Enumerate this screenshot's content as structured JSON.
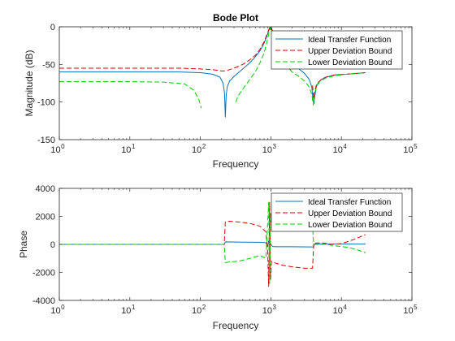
{
  "chart_data": [
    {
      "type": "line",
      "title": "Bode Plot",
      "xlabel": "Frequency",
      "ylabel": "Magnitude (dB)",
      "x_scale": "log",
      "xlim": [
        1,
        100000
      ],
      "ylim": [
        -150,
        0
      ],
      "x_ticks": [
        1,
        10,
        100,
        1000,
        10000,
        100000
      ],
      "y_ticks": [
        -150,
        -100,
        -50,
        0
      ],
      "y_tick_labels": [
        "-150",
        "-100",
        "-50",
        "0"
      ],
      "legend_position": "top-right",
      "series": [
        {
          "name": "Ideal Transfer Function",
          "color": "#0072bd",
          "dash": "solid",
          "x": [
            1,
            10,
            50,
            100,
            150,
            190,
            210,
            220,
            226,
            232,
            240,
            260,
            300,
            400,
            500,
            600,
            700,
            800,
            880,
            940,
            970,
            1000,
            1030,
            1070,
            1150,
            1300,
            1600,
            2000,
            2500,
            3000,
            3500,
            3800,
            4000,
            4100,
            4200,
            4400,
            4700,
            5200,
            6000,
            8000,
            12000,
            16000,
            22000
          ],
          "y": [
            -60,
            -60,
            -60,
            -61,
            -63,
            -67,
            -75,
            -88,
            -120,
            -92,
            -80,
            -72,
            -66,
            -56,
            -48,
            -40,
            -32,
            -22,
            -12,
            -4,
            -1,
            0,
            -2,
            -8,
            -18,
            -32,
            -42,
            -50,
            -56,
            -62,
            -70,
            -80,
            -100,
            -102,
            -92,
            -80,
            -74,
            -70,
            -67,
            -64,
            -63,
            -62,
            -61
          ]
        },
        {
          "name": "Upper Deviation Bound",
          "color": "#e00000",
          "dash": "dashed",
          "x": [
            1,
            10,
            50,
            100,
            150,
            180,
            210,
            240,
            300,
            400,
            500,
            600,
            700,
            800,
            880,
            940,
            980,
            1000,
            1020,
            1060,
            1100,
            1200,
            1400,
            1700,
            2000
          ],
          "y": [
            -55,
            -55,
            -55,
            -56,
            -57,
            -58,
            -59,
            -58,
            -55,
            -50,
            -44,
            -38,
            -30,
            -20,
            -10,
            -3,
            0,
            0,
            -3,
            -10,
            -18,
            -30,
            -42,
            -52,
            -60
          ]
        },
        {
          "name": "",
          "color": "#e00000",
          "dash": "dashed",
          "x": [
            3900,
            4050,
            4200,
            4400,
            4700,
            5200,
            6000,
            8000,
            12000,
            16000,
            22000
          ],
          "y": [
            -78,
            -95,
            -85,
            -78,
            -74,
            -70,
            -67,
            -64,
            -63,
            -62,
            -61
          ]
        },
        {
          "name": "Lower Deviation Bound",
          "color": "#00cc00",
          "dash": "dashed",
          "x": [
            1,
            10,
            30,
            60,
            80,
            95,
            103
          ],
          "y": [
            -73,
            -73,
            -73.5,
            -76,
            -84,
            -96,
            -108
          ]
        },
        {
          "name": "",
          "color": "#00cc00",
          "dash": "dashed",
          "x": [
            320,
            340,
            380,
            420,
            500,
            600,
            700,
            800,
            880,
            940,
            980,
            1000,
            1020,
            1060,
            1100,
            1200,
            1400,
            1700,
            2000,
            2500,
            3000,
            3500,
            3800,
            4000,
            4100,
            4250,
            4500,
            5000,
            6000,
            8000,
            12000,
            16000,
            22000
          ],
          "y": [
            -100,
            -92,
            -86,
            -80,
            -70,
            -60,
            -48,
            -35,
            -20,
            -8,
            -2,
            0,
            -4,
            -12,
            -20,
            -32,
            -44,
            -53,
            -60,
            -66,
            -72,
            -80,
            -90,
            -104,
            -96,
            -86,
            -78,
            -72,
            -68,
            -65,
            -63,
            -62,
            -61
          ]
        }
      ]
    },
    {
      "type": "line",
      "title": "",
      "xlabel": "Frequency",
      "ylabel": "Phase",
      "x_scale": "log",
      "xlim": [
        1,
        100000
      ],
      "ylim": [
        -4000,
        4000
      ],
      "x_ticks": [
        1,
        10,
        100,
        1000,
        10000,
        100000
      ],
      "y_ticks": [
        -4000,
        -2000,
        0,
        2000,
        4000
      ],
      "y_tick_labels": [
        "-4000",
        "-2000",
        "0",
        "2000",
        "4000"
      ],
      "legend_position": "top-right",
      "series": [
        {
          "name": "Ideal Transfer Function",
          "color": "#0072bd",
          "dash": "solid",
          "x": [
            1,
            10,
            100,
            210,
            218,
            226,
            400,
            700,
            850,
            900,
            930,
            960,
            990,
            1050,
            1200,
            2000,
            4000,
            4150,
            4300,
            6000,
            10000,
            22000
          ],
          "y": [
            0,
            0,
            0,
            0,
            0,
            180,
            160,
            150,
            120,
            -150,
            250,
            -50,
            50,
            -150,
            -170,
            -170,
            -180,
            0,
            30,
            20,
            20,
            20
          ]
        },
        {
          "name": "Upper Deviation Bound",
          "color": "#e00000",
          "dash": "dashed",
          "x": [
            1,
            10,
            100,
            210,
            218,
            226,
            260,
            350,
            500,
            700,
            850,
            900,
            930,
            960,
            990,
            1020,
            1100,
            1500,
            2000,
            3000,
            3900,
            4050,
            4100,
            4500,
            5500,
            7000,
            10000,
            15000,
            22000
          ],
          "y": [
            0,
            0,
            0,
            0,
            0,
            1600,
            1650,
            1600,
            1500,
            1300,
            900,
            -500,
            -3000,
            3000,
            -2500,
            -1200,
            -1300,
            -1500,
            -1600,
            -1700,
            -1700,
            100,
            50,
            100,
            100,
            0,
            50,
            350,
            700
          ]
        },
        {
          "name": "Lower Deviation Bound",
          "color": "#00cc00",
          "dash": "dashed",
          "x": [
            1,
            10,
            100,
            210,
            218,
            226,
            260,
            350,
            500,
            700,
            850,
            900,
            930,
            960,
            990,
            1020,
            1100,
            1500,
            2000,
            3000,
            3900,
            4050,
            4100,
            4500,
            6000,
            8000,
            12000,
            16000,
            22000
          ],
          "y": [
            0,
            0,
            0,
            0,
            0,
            -1300,
            -1250,
            -1200,
            -1000,
            -800,
            -1000,
            1500,
            3000,
            -2800,
            2200,
            1300,
            1200,
            1100,
            1200,
            1200,
            1250,
            0,
            0,
            0,
            0,
            -100,
            -200,
            -350,
            -600
          ]
        }
      ]
    }
  ]
}
